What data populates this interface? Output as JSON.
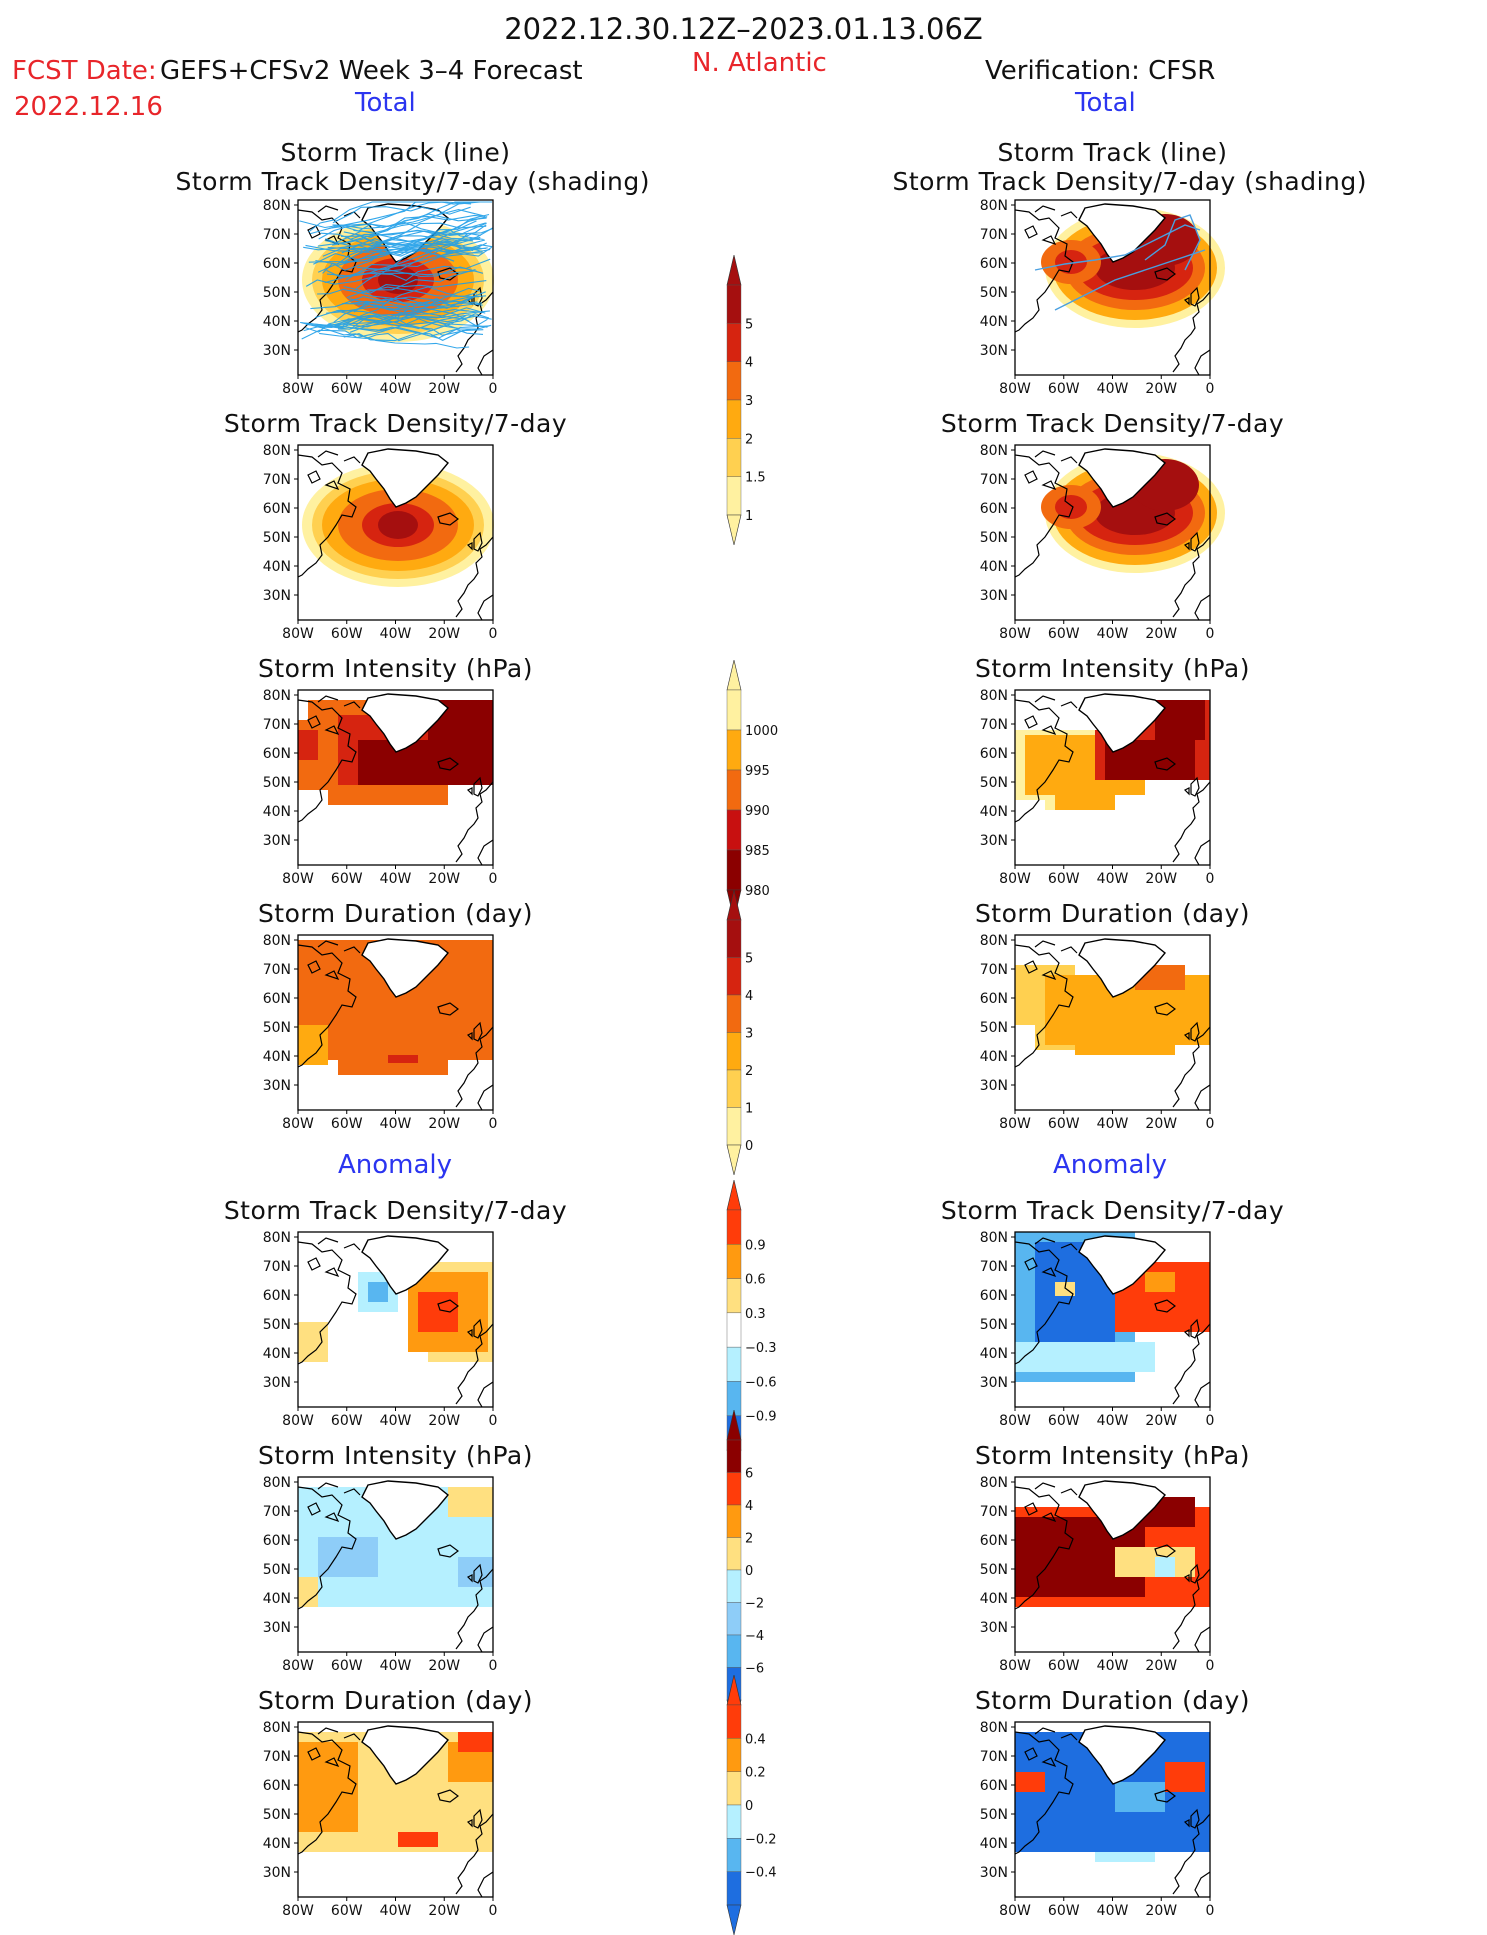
{
  "header": {
    "period": "2022.12.30.12Z–2023.01.13.06Z",
    "fcst_date_label": "FCST Date:",
    "fcst_date": "2022.12.16",
    "model": "GEFS+CFSv2 Week 3–4 Forecast",
    "region": "N. Atlantic",
    "verification": "Verification: CFSR",
    "left_section": "Total",
    "right_section": "Total",
    "anomaly_left": "Anomaly",
    "anomaly_right": "Anomaly"
  },
  "colors": {
    "red_text": "#e8252a",
    "blue_text": "#2b35f0",
    "track_line": "#1e9ee8"
  },
  "map_axes": {
    "lat_labels": [
      "80N",
      "70N",
      "60N",
      "50N",
      "40N",
      "30N"
    ],
    "lon_labels": [
      "80W",
      "60W",
      "40W",
      "20W",
      "0"
    ]
  },
  "panels": {
    "p1_title_line1": "Storm Track (line)",
    "p1_title_line2": "Storm Track Density/7-day (shading)",
    "density": "Storm Track Density/7-day",
    "intensity": "Storm Intensity (hPa)",
    "duration": "Storm Duration (day)"
  },
  "colorbars": {
    "density": {
      "labels": [
        "5",
        "4",
        "3",
        "2",
        "1.5",
        "1"
      ],
      "colors": [
        "#a50f0f",
        "#d62410",
        "#f26a10",
        "#ffaa10",
        "#ffd050",
        "#fff1a0"
      ]
    },
    "intensity": {
      "labels": [
        "1000",
        "995",
        "990",
        "985",
        "980"
      ],
      "colors": [
        "#fff1a0",
        "#ffaa10",
        "#f26a10",
        "#c81010",
        "#8b0000"
      ]
    },
    "duration": {
      "labels": [
        "5",
        "4",
        "3",
        "2",
        "1",
        "0"
      ],
      "colors": [
        "#a50f0f",
        "#d62410",
        "#f26a10",
        "#ffaa10",
        "#ffd050",
        "#fff1a0"
      ]
    },
    "anom_density": {
      "labels": [
        "0.9",
        "0.6",
        "0.3",
        "−0.3",
        "−0.6",
        "−0.9"
      ],
      "colors": [
        "#ff3c0a",
        "#ff9a10",
        "#ffe080",
        "#ffffff",
        "#b5f0ff",
        "#58b6f0",
        "#1e6ee0"
      ]
    },
    "anom_intensity": {
      "labels": [
        "6",
        "4",
        "2",
        "0",
        "−2",
        "−4",
        "−6"
      ],
      "colors": [
        "#8b0000",
        "#ff3c0a",
        "#ff9a10",
        "#ffe080",
        "#b5f0ff",
        "#8ecdf8",
        "#58b6f0",
        "#1e6ee0"
      ]
    },
    "anom_duration": {
      "labels": [
        "0.4",
        "0.2",
        "0",
        "−0.2",
        "−0.4"
      ],
      "colors": [
        "#ff3c0a",
        "#ff9a10",
        "#ffe080",
        "#b5f0ff",
        "#58b6f0",
        "#1e6ee0"
      ]
    }
  }
}
